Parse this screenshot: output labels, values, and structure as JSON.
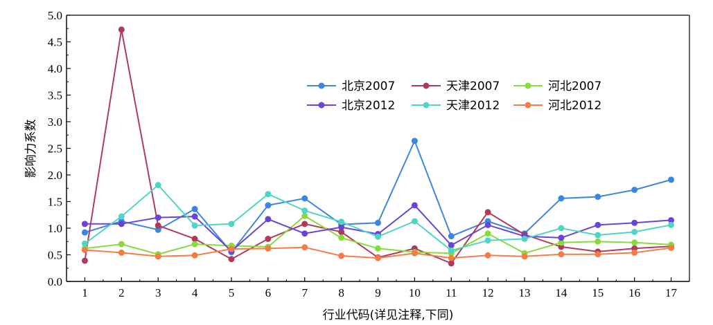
{
  "chart_data": {
    "type": "line",
    "title": "",
    "xlabel": "行业代码(详见注释,下同)",
    "ylabel": "影响力系数",
    "x": [
      1,
      2,
      3,
      4,
      5,
      6,
      7,
      8,
      9,
      10,
      11,
      12,
      13,
      14,
      15,
      16,
      17
    ],
    "xlim": [
      0.5,
      17.5
    ],
    "ylim": [
      0,
      5.0
    ],
    "yticks": [
      "0.0",
      "0.5",
      "1.0",
      "1.5",
      "2.0",
      "2.5",
      "3.0",
      "3.5",
      "4.0",
      "4.5",
      "5.0"
    ],
    "grid": false,
    "legend_position": "top-center",
    "series": [
      {
        "name": "北京2007",
        "color": "#3b86e0",
        "values": [
          0.92,
          1.13,
          0.97,
          1.36,
          0.55,
          1.43,
          1.56,
          1.07,
          1.1,
          2.64,
          0.85,
          1.13,
          0.9,
          1.56,
          1.59,
          1.72,
          1.91
        ]
      },
      {
        "name": "天津2007",
        "color": "#b03a5b",
        "values": [
          0.39,
          4.73,
          1.05,
          0.8,
          0.42,
          0.8,
          1.08,
          0.93,
          0.45,
          0.62,
          0.34,
          1.3,
          0.88,
          0.65,
          0.56,
          0.62,
          0.66
        ]
      },
      {
        "name": "河北2007",
        "color": "#86dc3a",
        "values": [
          0.62,
          0.7,
          0.51,
          0.7,
          0.67,
          0.65,
          1.23,
          0.82,
          0.62,
          0.55,
          0.53,
          0.9,
          0.53,
          0.73,
          0.75,
          0.73,
          0.69
        ]
      },
      {
        "name": "北京2012",
        "color": "#6a44d8",
        "values": [
          1.08,
          1.08,
          1.2,
          1.22,
          0.57,
          1.17,
          0.9,
          1.02,
          0.89,
          1.43,
          0.68,
          1.06,
          0.85,
          0.82,
          1.06,
          1.1,
          1.15
        ]
      },
      {
        "name": "天津2012",
        "color": "#4fd5c4",
        "values": [
          0.71,
          1.22,
          1.81,
          1.05,
          1.08,
          1.64,
          1.33,
          1.12,
          0.84,
          1.13,
          0.58,
          0.77,
          0.8,
          1.0,
          0.87,
          0.93,
          1.06
        ]
      },
      {
        "name": "河北2012",
        "color": "#f57c46",
        "values": [
          0.59,
          0.54,
          0.47,
          0.49,
          0.61,
          0.62,
          0.64,
          0.48,
          0.44,
          0.53,
          0.44,
          0.49,
          0.47,
          0.51,
          0.51,
          0.54,
          0.63
        ]
      }
    ]
  }
}
